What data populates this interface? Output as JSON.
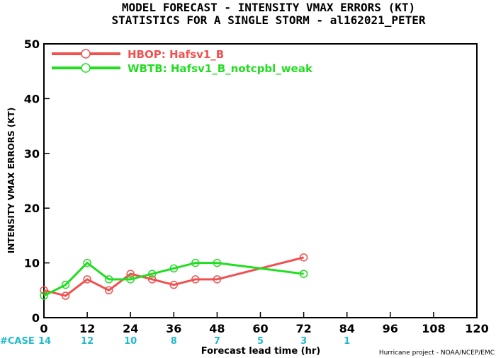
{
  "chart_data": {
    "type": "line",
    "title": [
      "MODEL FORECAST - INTENSITY VMAX ERRORS (KT)",
      "STATISTICS FOR A SINGLE STORM - al162021_PETER"
    ],
    "xlabel": "Forecast lead time (hr)",
    "ylabel": "INTENSITY VMAX ERRORS (KT)",
    "xlim": [
      0,
      120
    ],
    "ylim": [
      0,
      50
    ],
    "xticks": [
      0,
      12,
      24,
      36,
      48,
      60,
      72,
      84,
      96,
      108,
      120
    ],
    "yticks": [
      0,
      10,
      20,
      30,
      40,
      50
    ],
    "grid": false,
    "legend_position": "top-left",
    "series": [
      {
        "name": "HBOP: Hafsv1_B",
        "color": "#f05050",
        "x": [
          0,
          6,
          12,
          18,
          24,
          30,
          36,
          42,
          48,
          72
        ],
        "y": [
          5,
          4,
          7,
          5,
          8,
          7,
          6,
          7,
          7,
          11
        ]
      },
      {
        "name": "WBTB: Hafsv1_B_notcpbl_weak",
        "color": "#22dd22",
        "x": [
          0,
          6,
          12,
          18,
          24,
          30,
          36,
          42,
          48,
          72
        ],
        "y": [
          4,
          6,
          10,
          7,
          7,
          8,
          9,
          10,
          10,
          8
        ]
      }
    ],
    "cases": {
      "label": "#CASE",
      "color": "#22bbcc",
      "x": [
        0,
        12,
        24,
        36,
        48,
        60,
        72,
        84
      ],
      "values": [
        "14",
        "12",
        "10",
        "8",
        "7",
        "5",
        "3",
        "1"
      ]
    },
    "credit": "Hurricane project - NOAA/NCEP/EMC"
  }
}
